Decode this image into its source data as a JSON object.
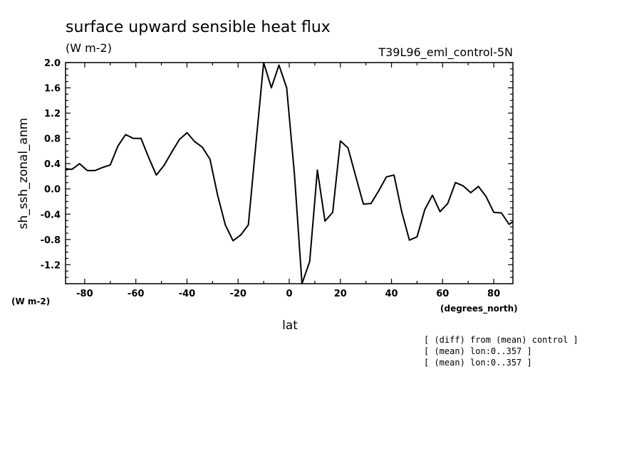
{
  "header": {
    "title": "surface upward sensible heat flux",
    "units": "(W m-2)",
    "dataset": "T39L96_eml_control-5N"
  },
  "notes": [
    "[ (diff) from (mean) control ]",
    "[ (mean) lon:0..357 ]",
    "[ (mean) lon:0..357 ]"
  ],
  "chart_data": {
    "type": "line",
    "xlabel": "lat",
    "ylabel": "sh_ssh_zonal_anm",
    "x_units": "(degrees_north)",
    "y_units": "(W m-2)",
    "xlim": [
      -87.5,
      87.5
    ],
    "ylim": [
      -1.5,
      2.0
    ],
    "x_ticks": [
      -80,
      -60,
      -40,
      -20,
      0,
      20,
      40,
      60,
      80
    ],
    "x_tick_labels": [
      "-80",
      "-60",
      "-40",
      "-20",
      "0",
      "20",
      "40",
      "60",
      "80"
    ],
    "y_ticks": [
      -1.2,
      -0.8,
      -0.4,
      0.0,
      0.4,
      0.8,
      1.2,
      1.6,
      2.0
    ],
    "y_tick_labels": [
      "-1.2",
      "-0.8",
      "-0.4",
      "0.0",
      "0.4",
      "0.8",
      "1.2",
      "1.6",
      "2.0"
    ],
    "grid": false,
    "series": [
      {
        "color": "#000000",
        "x": [
          -87.5,
          -85,
          -82,
          -79,
          -76,
          -73,
          -70,
          -67,
          -64,
          -61,
          -58,
          -55,
          -52,
          -49,
          -46,
          -43,
          -40,
          -37,
          -34,
          -31,
          -28,
          -25,
          -22,
          -19,
          -16,
          -13,
          -10,
          -7,
          -4,
          -1,
          2,
          5,
          8,
          11,
          14,
          17,
          20,
          23,
          26,
          29,
          32,
          35,
          38,
          41,
          44,
          47,
          50,
          53,
          56,
          59,
          62,
          65,
          68,
          71,
          74,
          77,
          80,
          83,
          86,
          87.5
        ],
        "y": [
          0.32,
          0.31,
          0.4,
          0.29,
          0.29,
          0.34,
          0.38,
          0.68,
          0.86,
          0.8,
          0.8,
          0.5,
          0.22,
          0.37,
          0.58,
          0.78,
          0.89,
          0.75,
          0.66,
          0.47,
          -0.1,
          -0.57,
          -0.82,
          -0.73,
          -0.57,
          0.72,
          2.0,
          1.6,
          1.96,
          1.6,
          0.25,
          -1.5,
          -1.15,
          0.3,
          -0.51,
          -0.37,
          0.76,
          0.65,
          0.2,
          -0.24,
          -0.23,
          -0.03,
          0.19,
          0.22,
          -0.36,
          -0.81,
          -0.76,
          -0.33,
          -0.1,
          -0.36,
          -0.23,
          0.1,
          0.05,
          -0.06,
          0.04,
          -0.12,
          -0.37,
          -0.38,
          -0.56,
          -0.52
        ]
      }
    ]
  }
}
